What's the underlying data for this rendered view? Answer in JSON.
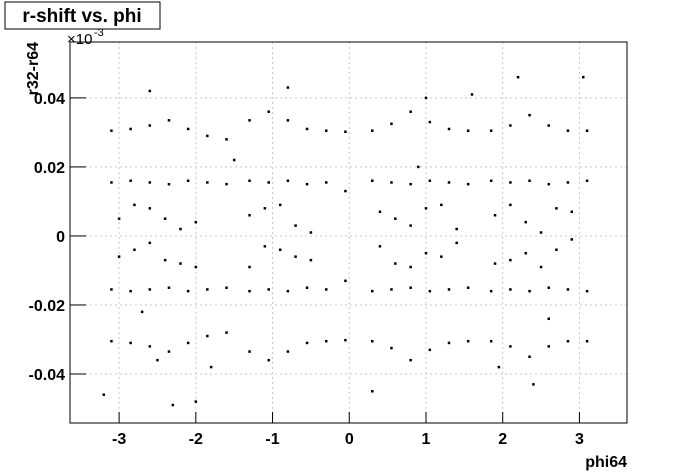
{
  "chart_data": {
    "type": "scatter",
    "title": "r-shift vs. phi",
    "x_label": "phi64",
    "y_label": "r32-r64",
    "y_multiplier": "×10",
    "y_multiplier_exp": "-3",
    "xlim": [
      -3.64,
      3.62
    ],
    "ylim": [
      -0.0542,
      0.0562
    ],
    "xticks": [
      -3,
      -2,
      -1,
      0,
      1,
      2,
      3
    ],
    "yticks": [
      -0.04,
      -0.02,
      0,
      0.02,
      0.04
    ],
    "grid": true,
    "color": "#000000",
    "x": [
      -3.1,
      -2.85,
      -2.6,
      -2.35,
      -2.1,
      -1.85,
      -1.6,
      -1.3,
      -1.05,
      -0.8,
      -0.55,
      -0.3,
      -0.05,
      0.3,
      0.55,
      0.8,
      1.05,
      1.3,
      1.55,
      1.85,
      2.1,
      2.35,
      2.6,
      2.85,
      3.1,
      -3.1,
      -2.85,
      -2.6,
      -2.35,
      -2.1,
      -1.85,
      -1.6,
      -1.3,
      -1.05,
      -0.8,
      -0.55,
      -0.3,
      -0.05,
      0.3,
      0.55,
      0.8,
      1.05,
      1.3,
      1.55,
      1.85,
      2.1,
      2.35,
      2.6,
      2.85,
      3.1,
      -3.1,
      -2.85,
      -2.6,
      -2.35,
      -2.1,
      -1.85,
      -1.6,
      -1.3,
      -1.05,
      -0.8,
      -0.55,
      -0.3,
      -0.05,
      0.3,
      0.55,
      0.8,
      1.05,
      1.3,
      1.55,
      1.85,
      2.1,
      2.35,
      2.6,
      2.85,
      3.1,
      -3.1,
      -2.85,
      -2.6,
      -2.35,
      -2.1,
      -1.85,
      -1.6,
      -1.3,
      -1.05,
      -0.8,
      -0.55,
      -0.3,
      -0.05,
      0.3,
      0.55,
      0.8,
      1.05,
      1.3,
      1.55,
      1.85,
      2.1,
      2.35,
      2.6,
      2.85,
      3.1,
      -3.0,
      -2.8,
      -2.6,
      -2.4,
      -2.2,
      -2.0,
      -1.3,
      -1.1,
      -0.9,
      -0.7,
      -0.5,
      0.4,
      0.6,
      0.8,
      1.0,
      1.2,
      1.4,
      1.9,
      2.1,
      2.3,
      2.5,
      2.7,
      2.9,
      -3.0,
      -2.8,
      -2.6,
      -2.4,
      -2.2,
      -2.0,
      -1.3,
      -1.1,
      -0.9,
      -0.7,
      -0.5,
      0.4,
      0.6,
      0.8,
      1.0,
      1.2,
      1.4,
      1.9,
      2.1,
      2.3,
      2.5,
      2.7,
      2.9,
      -3.2,
      -2.3,
      -2.0,
      -2.6,
      -0.8,
      1.0,
      2.2,
      3.05,
      0.3,
      1.95,
      2.4,
      -2.5,
      -1.8,
      0.9,
      -1.5,
      -2.7,
      2.6,
      1.6
    ],
    "values": [
      0.0305,
      0.031,
      0.032,
      0.0335,
      0.031,
      0.029,
      0.028,
      0.0335,
      0.036,
      0.0335,
      0.031,
      0.0305,
      0.0302,
      0.0305,
      0.0325,
      0.036,
      0.033,
      0.031,
      0.0305,
      0.0305,
      0.032,
      0.035,
      0.032,
      0.0305,
      0.0305,
      -0.0305,
      -0.031,
      -0.032,
      -0.0335,
      -0.031,
      -0.029,
      -0.028,
      -0.0335,
      -0.036,
      -0.0335,
      -0.031,
      -0.0305,
      -0.0302,
      -0.0305,
      -0.0325,
      -0.036,
      -0.033,
      -0.031,
      -0.0305,
      -0.0305,
      -0.032,
      -0.035,
      -0.032,
      -0.0305,
      -0.0305,
      0.0155,
      0.016,
      0.0155,
      0.015,
      0.016,
      0.0155,
      0.015,
      0.016,
      0.0155,
      0.016,
      0.015,
      0.0155,
      0.013,
      0.016,
      0.0155,
      0.015,
      0.016,
      0.0155,
      0.015,
      0.016,
      0.0155,
      0.016,
      0.015,
      0.0155,
      0.016,
      -0.0155,
      -0.016,
      -0.0155,
      -0.015,
      -0.016,
      -0.0155,
      -0.015,
      -0.016,
      -0.0155,
      -0.016,
      -0.015,
      -0.0155,
      -0.013,
      -0.016,
      -0.0155,
      -0.015,
      -0.016,
      -0.0155,
      -0.015,
      -0.016,
      -0.0155,
      -0.016,
      -0.015,
      -0.0155,
      -0.016,
      0.005,
      -0.004,
      0.008,
      -0.007,
      0.002,
      -0.009,
      0.006,
      -0.003,
      0.009,
      -0.006,
      0.001,
      0.007,
      -0.008,
      0.003,
      -0.005,
      0.009,
      -0.002,
      0.006,
      -0.007,
      0.004,
      -0.009,
      0.008,
      -0.001,
      -0.006,
      0.009,
      -0.002,
      0.005,
      -0.008,
      0.004,
      -0.009,
      0.008,
      -0.004,
      0.003,
      -0.007,
      -0.003,
      0.005,
      -0.009,
      0.008,
      -0.006,
      0.002,
      -0.008,
      0.009,
      -0.005,
      0.001,
      -0.004,
      0.007,
      -0.046,
      -0.049,
      -0.048,
      0.042,
      0.043,
      0.04,
      0.046,
      0.046,
      -0.045,
      -0.038,
      -0.043,
      -0.036,
      -0.038,
      0.02,
      0.022,
      -0.022,
      -0.024,
      0.041
    ]
  }
}
